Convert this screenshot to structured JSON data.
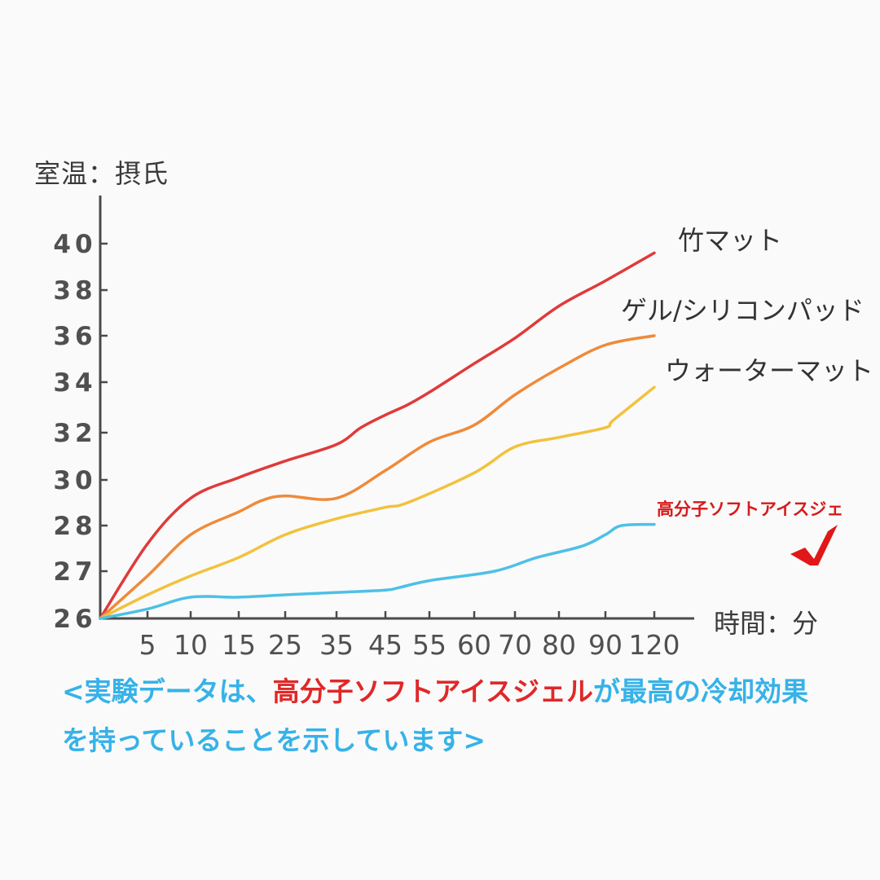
{
  "chart_data": {
    "type": "line",
    "ylabel": "室温：摂氏",
    "xlabel": "時間：分",
    "x_ticks": [
      "5",
      "10",
      "15",
      "25",
      "35",
      "45",
      "55",
      "60",
      "70",
      "80",
      "90",
      "120"
    ],
    "y_ticks": [
      "26",
      "27",
      "28",
      "30",
      "32",
      "34",
      "36",
      "38",
      "40"
    ],
    "series": [
      {
        "name": "竹マット",
        "color": "#e03a3a",
        "points": [
          [
            0,
            26
          ],
          [
            5,
            27.6
          ],
          [
            10,
            29.2
          ],
          [
            15,
            30.1
          ],
          [
            25,
            30.8
          ],
          [
            35,
            31.5
          ],
          [
            40,
            32.2
          ],
          [
            45,
            32.7
          ],
          [
            50,
            33.1
          ],
          [
            55,
            33.6
          ],
          [
            60,
            34.8
          ],
          [
            70,
            35.9
          ],
          [
            80,
            37.3
          ],
          [
            90,
            38.4
          ],
          [
            120,
            39.6
          ]
        ]
      },
      {
        "name": "ゲル/シリコンパッド",
        "color": "#ef8a3a",
        "points": [
          [
            0,
            26
          ],
          [
            5,
            26.9
          ],
          [
            10,
            27.8
          ],
          [
            15,
            28.6
          ],
          [
            20,
            29.1
          ],
          [
            25,
            29.3
          ],
          [
            35,
            29.2
          ],
          [
            45,
            30.4
          ],
          [
            55,
            31.6
          ],
          [
            60,
            32.3
          ],
          [
            70,
            33.5
          ],
          [
            80,
            34.6
          ],
          [
            90,
            35.6
          ],
          [
            120,
            36
          ]
        ]
      },
      {
        "name": "ウォーターマット",
        "color": "#f2c23c",
        "points": [
          [
            0,
            26
          ],
          [
            5,
            26.5
          ],
          [
            10,
            26.9
          ],
          [
            15,
            27.3
          ],
          [
            25,
            27.8
          ],
          [
            35,
            28.3
          ],
          [
            45,
            28.8
          ],
          [
            50,
            29.0
          ],
          [
            60,
            30.3
          ],
          [
            70,
            31.4
          ],
          [
            80,
            31.8
          ],
          [
            90,
            32.2
          ],
          [
            95,
            32.5
          ],
          [
            120,
            33.8
          ]
        ]
      },
      {
        "name": "高分子ソフトアイスジェ",
        "color": "#4dc0e6",
        "points": [
          [
            0,
            26
          ],
          [
            5,
            26.2
          ],
          [
            10,
            26.45
          ],
          [
            15,
            26.45
          ],
          [
            25,
            26.5
          ],
          [
            35,
            26.55
          ],
          [
            45,
            26.6
          ],
          [
            48,
            26.65
          ],
          [
            55,
            26.8
          ],
          [
            65,
            27.0
          ],
          [
            75,
            27.3
          ],
          [
            85,
            27.55
          ],
          [
            90,
            27.8
          ],
          [
            100,
            28.0
          ],
          [
            120,
            28.05
          ]
        ]
      }
    ]
  },
  "caption": {
    "line1_prefix": "<実験データは、",
    "line1_highlight": "高分子ソフトアイスジェル",
    "line1_suffix": "が最高の冷却効果",
    "line2": "を持っていることを示しています>"
  },
  "colors": {
    "axis": "#4a4a4a",
    "tick_text": "#505050",
    "caption": "#36b2e8",
    "highlight": "#e02828",
    "check": "#e01818"
  },
  "icons": [
    "checkmark-icon"
  ]
}
